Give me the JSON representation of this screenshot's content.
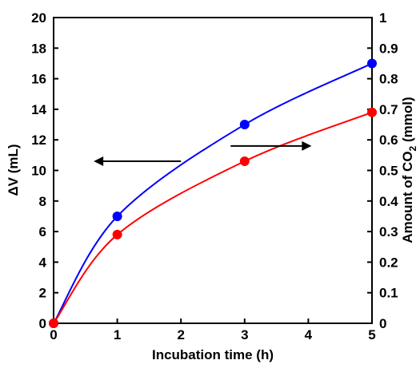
{
  "chart_data": {
    "type": "line",
    "title": "",
    "xlabel": "Incubation time (h)",
    "ylabel_left": "ΔV (mL)",
    "ylabel_right_prefix": "Amount of CO",
    "ylabel_right_subscript": "2",
    "ylabel_right_suffix": " (mmol)",
    "xlim": [
      0,
      5
    ],
    "ylim_left": [
      0,
      20
    ],
    "ylim_right": [
      0,
      1
    ],
    "xticks": [
      "0",
      "1",
      "2",
      "3",
      "4",
      "5"
    ],
    "yticks_left": [
      "0",
      "2",
      "4",
      "6",
      "8",
      "10",
      "12",
      "14",
      "16",
      "18",
      "20"
    ],
    "yticks_right": [
      "0",
      "0.1",
      "0.2",
      "0.3",
      "0.4",
      "0.5",
      "0.6",
      "0.7",
      "0.8",
      "0.9",
      "1"
    ],
    "grid": false,
    "series": [
      {
        "axis": "left",
        "color": "#0000ff",
        "x": [
          0,
          1,
          3,
          5
        ],
        "y": [
          0,
          7.0,
          13.0,
          17.0
        ]
      },
      {
        "axis": "right",
        "color": "#ff0000",
        "x": [
          0,
          1,
          3,
          5
        ],
        "y": [
          0,
          0.29,
          0.53,
          0.69
        ]
      }
    ],
    "annotations": [
      {
        "type": "arrow",
        "direction": "left",
        "points_to": "left-axis"
      },
      {
        "type": "arrow",
        "direction": "right",
        "points_to": "right-axis"
      }
    ]
  }
}
